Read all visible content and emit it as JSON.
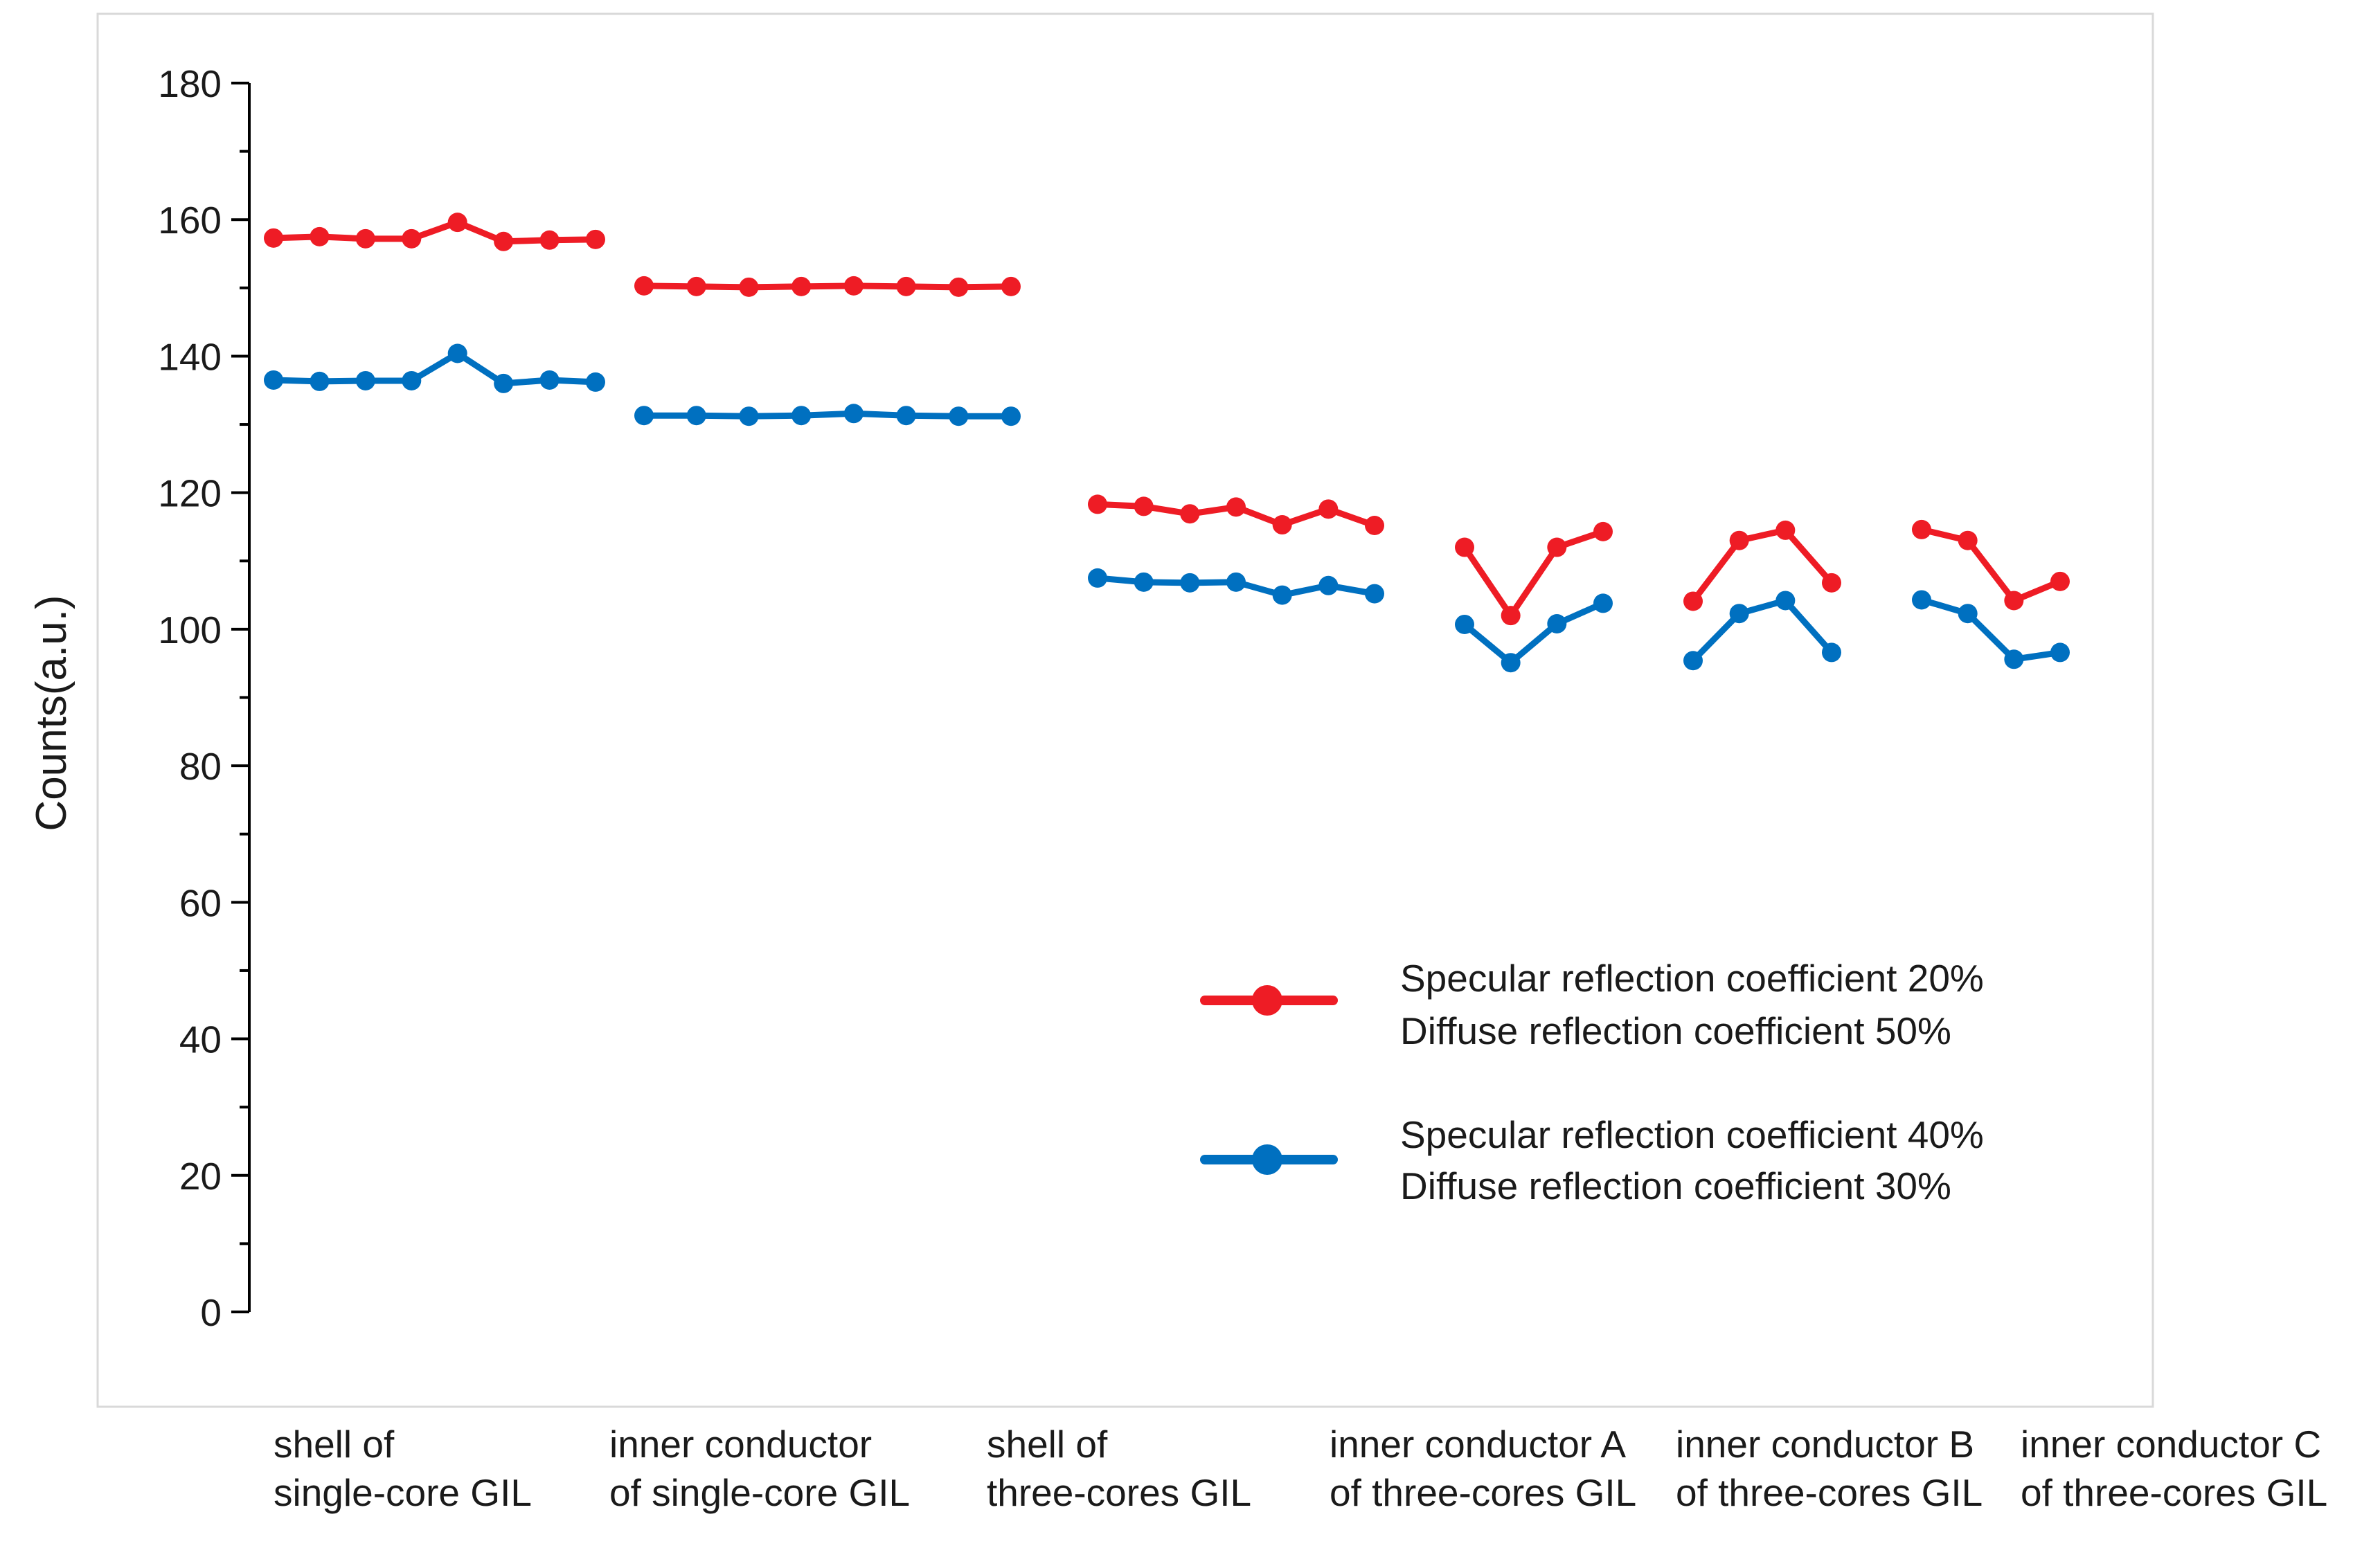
{
  "chart_data": {
    "type": "line",
    "title": "",
    "xlabel": "",
    "ylabel": "Counts(a.u.)",
    "ylim": [
      0,
      180
    ],
    "yticks": [
      0,
      20,
      40,
      60,
      80,
      100,
      120,
      140,
      160,
      180
    ],
    "grid": false,
    "legend_position": "center-right",
    "groups": [
      {
        "label_line1": "shell of",
        "label_line2": "single-core GIL",
        "points": 8,
        "series_values": [
          [
            157.3,
            157.5,
            157.2,
            157.2,
            159.6,
            156.8,
            157.0,
            157.1
          ],
          [
            136.5,
            136.3,
            136.4,
            136.4,
            140.4,
            136.0,
            136.5,
            136.2
          ]
        ]
      },
      {
        "label_line1": "inner conductor",
        "label_line2": "of single-core GIL",
        "points": 8,
        "series_values": [
          [
            150.3,
            150.2,
            150.1,
            150.2,
            150.3,
            150.2,
            150.1,
            150.2
          ],
          [
            131.3,
            131.3,
            131.2,
            131.3,
            131.6,
            131.3,
            131.2,
            131.2
          ]
        ]
      },
      {
        "label_line1": "shell of",
        "label_line2": "three-cores GIL",
        "points": 7,
        "series_values": [
          [
            118.3,
            118.0,
            116.9,
            117.9,
            115.3,
            117.6,
            115.2
          ],
          [
            107.5,
            106.9,
            106.8,
            106.9,
            105.0,
            106.4,
            105.2
          ]
        ]
      },
      {
        "label_line1": "inner conductor A",
        "label_line2": "of three-cores GIL",
        "points": 4,
        "series_values": [
          [
            112.0,
            102.0,
            112.0,
            114.3
          ],
          [
            100.7,
            95.1,
            100.8,
            103.8
          ]
        ]
      },
      {
        "label_line1": "inner conductor B",
        "label_line2": "of three-cores GIL",
        "points": 4,
        "series_values": [
          [
            104.1,
            113.0,
            114.5,
            106.8
          ],
          [
            95.4,
            102.3,
            104.2,
            96.6
          ]
        ]
      },
      {
        "label_line1": "inner conductor C",
        "label_line2": "of three-cores GIL",
        "points": 4,
        "series_values": [
          [
            114.6,
            113.0,
            104.2,
            107.0
          ],
          [
            104.3,
            102.3,
            95.6,
            96.6
          ]
        ]
      }
    ],
    "series": [
      {
        "name": "Specular reflection coefficient 20%",
        "name_line2": "Diffuse reflection coefficient 50%",
        "color": "#ee1c25"
      },
      {
        "name": "Specular reflection coefficient 40%",
        "name_line2": "Diffuse reflection coefficient 30%",
        "color": "#0070c0"
      }
    ]
  }
}
